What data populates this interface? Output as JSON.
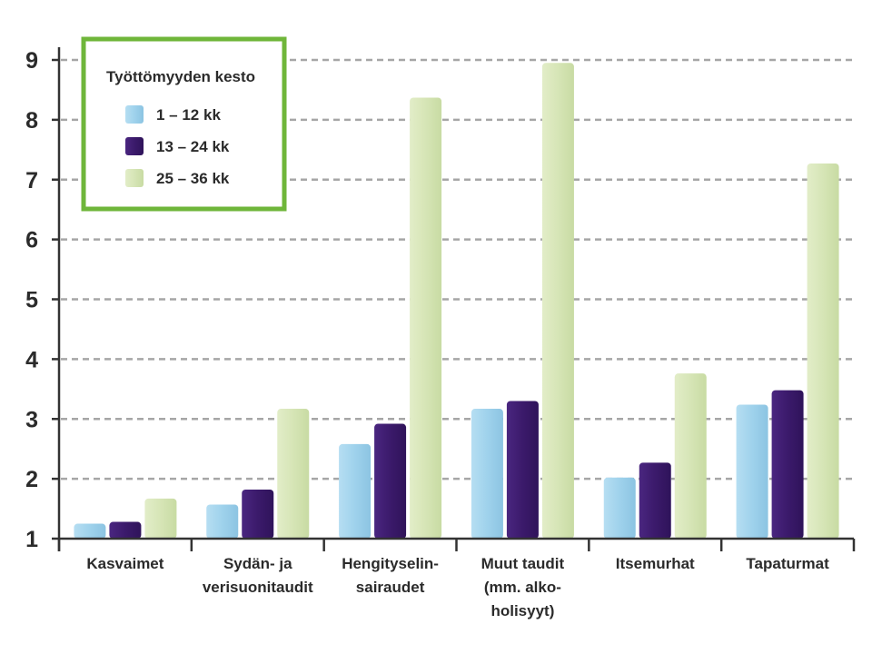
{
  "chart_data": {
    "type": "bar",
    "title": "",
    "xlabel": "",
    "ylabel": "",
    "ylim": [
      1,
      9
    ],
    "yticks": [
      "1",
      "2",
      "3",
      "4",
      "5",
      "6",
      "7",
      "8",
      "9"
    ],
    "grid": "horizontal dashed",
    "legend_position": "top-left",
    "legend_title": "Työttömyyden kesto",
    "categories": [
      [
        "Kasvaimet"
      ],
      [
        "Sydän- ja",
        "verisuonitaudit"
      ],
      [
        "Hengityselin-",
        "sairaudet"
      ],
      [
        "Muut taudit",
        "(mm. alko-",
        "holisyyt)"
      ],
      [
        "Itsemurhat"
      ],
      [
        "Tapaturmat"
      ]
    ],
    "series": [
      {
        "name": "1 – 12 kk",
        "color": "#9fd2ec",
        "values": [
          1.25,
          1.57,
          2.58,
          3.17,
          2.02,
          3.24
        ]
      },
      {
        "name": "13 – 24 kk",
        "color": "#3b1a6b",
        "values": [
          1.28,
          1.82,
          2.92,
          3.3,
          2.27,
          3.48
        ]
      },
      {
        "name": "25 – 36 kk",
        "color": "#d6e5b6",
        "values": [
          1.67,
          3.17,
          8.37,
          8.95,
          3.76,
          7.27
        ]
      }
    ],
    "legend_border_color": "#6fb63a"
  }
}
